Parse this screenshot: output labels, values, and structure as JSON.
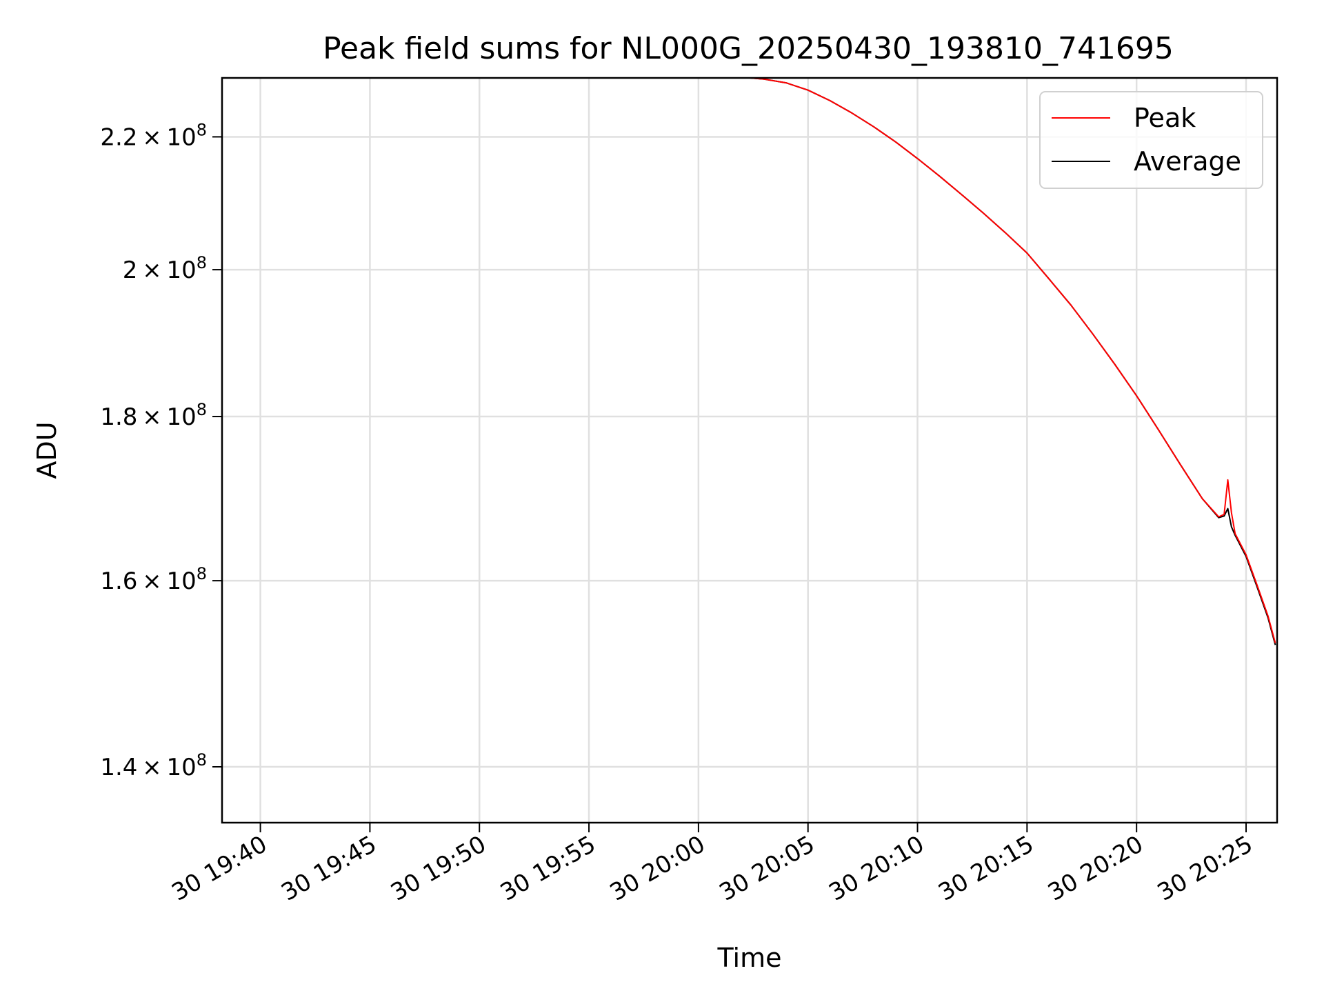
{
  "chart_data": {
    "type": "line",
    "title": "Peak field sums for NL000G_20250430_193810_741695",
    "xlabel": "Time",
    "ylabel": "ADU",
    "y_scale": "log",
    "grid": true,
    "legend_placement": "top-right",
    "xlim": [
      "2025-04-30 19:38:15",
      "2025-04-30 20:26:25"
    ],
    "ylim": [
      134500000,
      229500000
    ],
    "x_ticks": [
      {
        "value": "2025-04-30 19:40:00",
        "label": "30 19:40"
      },
      {
        "value": "2025-04-30 19:45:00",
        "label": "30 19:45"
      },
      {
        "value": "2025-04-30 19:50:00",
        "label": "30 19:50"
      },
      {
        "value": "2025-04-30 19:55:00",
        "label": "30 19:55"
      },
      {
        "value": "2025-04-30 20:00:00",
        "label": "30 20:00"
      },
      {
        "value": "2025-04-30 20:05:00",
        "label": "30 20:05"
      },
      {
        "value": "2025-04-30 20:10:00",
        "label": "30 20:10"
      },
      {
        "value": "2025-04-30 20:15:00",
        "label": "30 20:15"
      },
      {
        "value": "2025-04-30 20:20:00",
        "label": "30 20:20"
      },
      {
        "value": "2025-04-30 20:25:00",
        "label": "30 20:25"
      }
    ],
    "y_ticks": [
      {
        "value": 140000000,
        "mantissa": "1.4",
        "exponent": "8"
      },
      {
        "value": 160000000,
        "mantissa": "1.6",
        "exponent": "8"
      },
      {
        "value": 180000000,
        "mantissa": "1.8",
        "exponent": "8"
      },
      {
        "value": 200000000,
        "mantissa": "2",
        "exponent": "8"
      },
      {
        "value": 220000000,
        "mantissa": "2.2",
        "exponent": "8"
      }
    ],
    "times": [
      "2025-04-30 20:01:00",
      "2025-04-30 20:02:00",
      "2025-04-30 20:03:00",
      "2025-04-30 20:04:00",
      "2025-04-30 20:05:00",
      "2025-04-30 20:06:00",
      "2025-04-30 20:07:00",
      "2025-04-30 20:08:00",
      "2025-04-30 20:09:00",
      "2025-04-30 20:10:00",
      "2025-04-30 20:11:00",
      "2025-04-30 20:12:00",
      "2025-04-30 20:13:00",
      "2025-04-30 20:14:00",
      "2025-04-30 20:15:00",
      "2025-04-30 20:16:00",
      "2025-04-30 20:17:00",
      "2025-04-30 20:18:00",
      "2025-04-30 20:19:00",
      "2025-04-30 20:20:00",
      "2025-04-30 20:21:00",
      "2025-04-30 20:22:00",
      "2025-04-30 20:23:00",
      "2025-04-30 20:23:45",
      "2025-04-30 20:24:00",
      "2025-04-30 20:24:10",
      "2025-04-30 20:24:20",
      "2025-04-30 20:24:30",
      "2025-04-30 20:25:00",
      "2025-04-30 20:25:30",
      "2025-04-30 20:26:00",
      "2025-04-30 20:26:20"
    ],
    "series": [
      {
        "name": "Peak",
        "color": "#ff0000",
        "values": [
          229700000,
          229600000,
          229300000,
          228700000,
          227500000,
          225800000,
          223800000,
          221600000,
          219200000,
          216600000,
          213900000,
          211100000,
          208300000,
          205400000,
          202400000,
          198700000,
          195000000,
          191000000,
          186900000,
          182700000,
          178300000,
          173900000,
          169700000,
          167500000,
          167800000,
          172000000,
          168000000,
          165500000,
          163000000,
          159500000,
          156000000,
          153000000
        ]
      },
      {
        "name": "Average",
        "color": "#000000",
        "values": [
          229700000,
          229600000,
          229300000,
          228700000,
          227500000,
          225800000,
          223800000,
          221600000,
          219200000,
          216600000,
          213900000,
          211100000,
          208300000,
          205400000,
          202400000,
          198700000,
          195000000,
          191000000,
          186900000,
          182700000,
          178300000,
          173900000,
          169700000,
          167400000,
          167600000,
          168500000,
          166300000,
          165300000,
          162800000,
          159300000,
          155800000,
          152800000
        ]
      }
    ]
  }
}
